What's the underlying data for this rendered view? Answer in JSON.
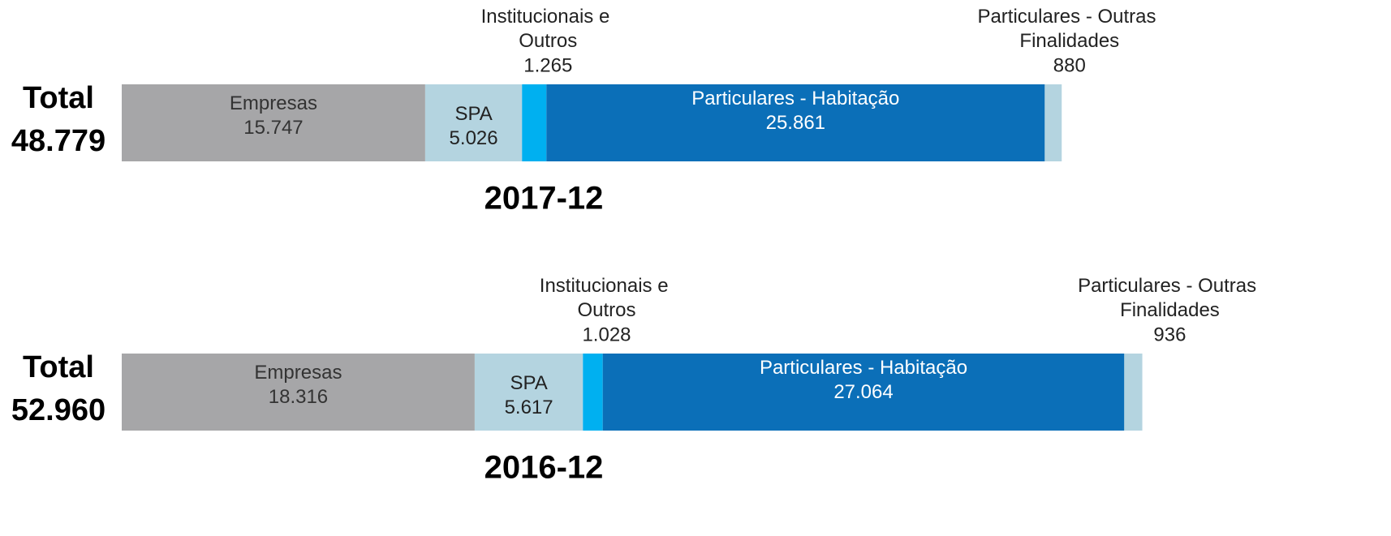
{
  "chart_data": [
    {
      "type": "stacked-bar",
      "title": "2017-12",
      "total_title": "Total",
      "total": 48779,
      "total_label": "48.779",
      "categories": [
        "Empresas",
        "SPA",
        "Institucionais e Outros",
        "Particulares - Habitação",
        "Particulares - Outras Finalidades"
      ],
      "values": [
        15747,
        5026,
        1265,
        25861,
        880
      ],
      "value_labels": [
        "15.747",
        "5.026",
        "1.265",
        "25.861",
        "880"
      ],
      "colors": [
        "#a6a6a8",
        "#b4d4e0",
        "#00b0f0",
        "#0b6fb8",
        "#b4d4e0"
      ]
    },
    {
      "type": "stacked-bar",
      "title": "2016-12",
      "total_title": "Total",
      "total": 52960,
      "total_label": "52.960",
      "categories": [
        "Empresas",
        "SPA",
        "Institucionais e Outros",
        "Particulares - Habitação",
        "Particulares - Outras Finalidades"
      ],
      "values": [
        18316,
        5617,
        1028,
        27064,
        936
      ],
      "value_labels": [
        "18.316",
        "5.617",
        "1.028",
        "27.064",
        "936"
      ],
      "colors": [
        "#a6a6a8",
        "#b4d4e0",
        "#00b0f0",
        "#0b6fb8",
        "#b4d4e0"
      ]
    }
  ]
}
